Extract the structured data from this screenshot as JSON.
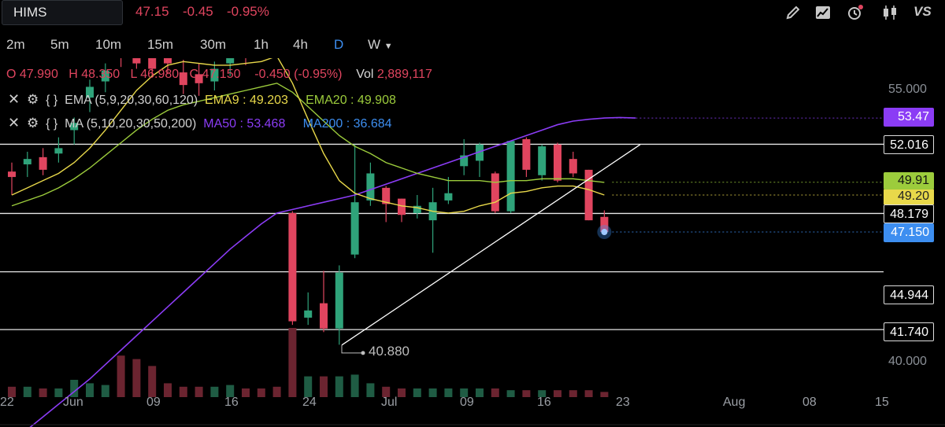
{
  "header": {
    "symbol": "HIMS",
    "last": "47.15",
    "change": "-0.45",
    "change_pct": "-0.95%",
    "tools": [
      "pencil-icon",
      "chart-type-icon",
      "alerts-icon",
      "candlestick-icon",
      "compare-icon"
    ],
    "compare_label": "VS"
  },
  "timeframes": [
    "2m",
    "5m",
    "10m",
    "15m",
    "30m",
    "1h",
    "4h",
    "D",
    "W"
  ],
  "active_timeframe": "D",
  "ohlc": {
    "open_label": "O",
    "open": "47.990",
    "high_label": "H",
    "high": "48.350",
    "low_label": "L",
    "low": "46.980",
    "close_label": "C",
    "close": "47.150",
    "change": "-0.450 (-0.95%)",
    "vol_label": "Vol",
    "vol": "2,889,117"
  },
  "indicators": {
    "ema_label": "EMA (5,9,20,30,60,120)",
    "ema9": "EMA9 : 49.203",
    "ema20": "EMA20 : 49.908",
    "ma_label": "MA (5,10,20,30,50,200)",
    "ma50": "MA50 : 53.468",
    "ma200": "MA200 : 36.684",
    "code_glyph": "{ }"
  },
  "colors": {
    "up": "#2fa37a",
    "down": "#e0455f",
    "ema9": "#e8d84a",
    "ema20": "#9ccc3c",
    "ma50": "#8b3cf5",
    "ma200": "#3d8ef0",
    "accent": "#3d8ef0"
  },
  "price_tags": {
    "ma50": "53.47",
    "ema20": "49.91",
    "ema9": "49.20",
    "last": "47.150",
    "levels": [
      "52.016",
      "48.179",
      "44.944",
      "41.740"
    ]
  },
  "low_annotation": "40.880",
  "y_axis_labels": [
    "55.000",
    "40.000"
  ],
  "x_axis_labels": [
    "22",
    "Jun",
    "09",
    "16",
    "24",
    "Jul",
    "09",
    "16",
    "23",
    "Aug",
    "08",
    "15"
  ],
  "chart_data": {
    "type": "candlestick",
    "y_axis": {
      "ticks": [
        55.0,
        40.0
      ]
    },
    "horizontal_levels": [
      52.016,
      48.179,
      44.944,
      41.74
    ],
    "trendline": {
      "from": 40.88,
      "to": 52.0
    },
    "candles": [
      {
        "o": 50.5,
        "h": 51.0,
        "l": 49.2,
        "c": 50.2
      },
      {
        "o": 50.9,
        "h": 51.6,
        "l": 50.2,
        "c": 51.2
      },
      {
        "o": 51.3,
        "h": 51.8,
        "l": 50.3,
        "c": 50.6
      },
      {
        "o": 51.5,
        "h": 52.4,
        "l": 51.0,
        "c": 51.8
      },
      {
        "o": 52.8,
        "h": 53.5,
        "l": 52.0,
        "c": 53.2
      },
      {
        "o": 54.6,
        "h": 55.6,
        "l": 53.8,
        "c": 55.2
      },
      {
        "o": 55.5,
        "h": 56.5,
        "l": 54.9,
        "c": 56.1
      },
      {
        "o": 57.0,
        "h": 57.8,
        "l": 56.3,
        "c": 56.8
      },
      {
        "o": 57.6,
        "h": 58.0,
        "l": 56.2,
        "c": 56.5
      },
      {
        "o": 56.8,
        "h": 57.4,
        "l": 55.8,
        "c": 56.2
      },
      {
        "o": 57.8,
        "h": 58.2,
        "l": 55.9,
        "c": 56.5
      },
      {
        "o": 56.0,
        "h": 56.7,
        "l": 54.8,
        "c": 55.3
      },
      {
        "o": 55.9,
        "h": 56.5,
        "l": 54.7,
        "c": 55.4
      },
      {
        "o": 55.5,
        "h": 56.6,
        "l": 55.0,
        "c": 56.2
      },
      {
        "o": 56.5,
        "h": 57.2,
        "l": 55.8,
        "c": 56.9
      },
      {
        "o": 57.5,
        "h": 58.0,
        "l": 56.4,
        "c": 56.8
      },
      {
        "o": 58.0,
        "h": 58.3,
        "l": 57.1,
        "c": 57.6
      },
      {
        "o": 59.0,
        "h": 59.5,
        "l": 58.0,
        "c": 58.4
      },
      {
        "o": 48.2,
        "h": 48.3,
        "l": 42.0,
        "c": 42.2
      },
      {
        "o": 42.4,
        "h": 43.8,
        "l": 42.0,
        "c": 42.8
      },
      {
        "o": 43.2,
        "h": 45.0,
        "l": 41.6,
        "c": 41.8
      },
      {
        "o": 41.8,
        "h": 45.3,
        "l": 40.9,
        "c": 44.9
      },
      {
        "o": 45.9,
        "h": 52.0,
        "l": 45.7,
        "c": 48.8
      },
      {
        "o": 48.9,
        "h": 51.0,
        "l": 48.6,
        "c": 50.4
      },
      {
        "o": 49.6,
        "h": 49.7,
        "l": 47.7,
        "c": 48.7
      },
      {
        "o": 49.0,
        "h": 49.0,
        "l": 47.7,
        "c": 48.1
      },
      {
        "o": 48.2,
        "h": 49.2,
        "l": 47.9,
        "c": 48.6
      },
      {
        "o": 47.8,
        "h": 49.6,
        "l": 46.0,
        "c": 48.8
      },
      {
        "o": 48.9,
        "h": 50.2,
        "l": 48.7,
        "c": 49.3
      },
      {
        "o": 50.8,
        "h": 52.3,
        "l": 50.3,
        "c": 51.4
      },
      {
        "o": 51.1,
        "h": 52.1,
        "l": 50.2,
        "c": 52.0
      },
      {
        "o": 50.4,
        "h": 50.5,
        "l": 48.2,
        "c": 48.3
      },
      {
        "o": 48.3,
        "h": 52.2,
        "l": 48.2,
        "c": 52.2
      },
      {
        "o": 52.3,
        "h": 52.4,
        "l": 50.2,
        "c": 50.6
      },
      {
        "o": 50.3,
        "h": 52.0,
        "l": 50.0,
        "c": 51.9
      },
      {
        "o": 52.0,
        "h": 52.1,
        "l": 49.9,
        "c": 50.0
      },
      {
        "o": 51.2,
        "h": 51.6,
        "l": 50.2,
        "c": 50.4
      },
      {
        "o": 50.6,
        "h": 50.6,
        "l": 47.8,
        "c": 47.8
      },
      {
        "o": 47.99,
        "h": 48.35,
        "l": 46.98,
        "c": 47.15
      }
    ],
    "ema9": [
      49.2,
      49.6,
      50.0,
      50.4,
      51.0,
      51.8,
      52.8,
      53.9,
      55.0,
      55.8,
      56.4,
      56.6,
      56.5,
      56.4,
      56.4,
      56.5,
      56.6,
      56.9,
      55.4,
      53.4,
      51.5,
      50.0,
      49.3,
      49.0,
      48.8,
      48.6,
      48.5,
      48.3,
      48.2,
      48.3,
      48.6,
      48.8,
      49.3,
      49.4,
      49.6,
      49.7,
      49.7,
      49.5,
      49.2
    ],
    "ema20": [
      48.6,
      48.9,
      49.2,
      49.6,
      50.1,
      50.7,
      51.4,
      52.1,
      52.8,
      53.4,
      53.9,
      54.2,
      54.4,
      54.6,
      54.8,
      55.0,
      55.2,
      55.4,
      54.9,
      54.1,
      53.3,
      52.5,
      51.9,
      51.5,
      51.0,
      50.7,
      50.4,
      50.2,
      50.0,
      50.0,
      50.0,
      49.9,
      50.0,
      50.0,
      50.1,
      50.1,
      50.1,
      50.0,
      49.9
    ],
    "ma50": [
      35.5,
      36.2,
      36.9,
      37.6,
      38.3,
      39.0,
      39.8,
      40.6,
      41.4,
      42.2,
      43.0,
      43.8,
      44.6,
      45.4,
      46.2,
      46.9,
      47.6,
      48.2,
      48.4,
      48.6,
      48.8,
      49.0,
      49.2,
      49.5,
      49.8,
      50.1,
      50.4,
      50.7,
      51.0,
      51.3,
      51.6,
      51.9,
      52.2,
      52.5,
      52.8,
      53.1,
      53.3,
      53.4,
      53.47
    ],
    "volume": [
      6,
      6,
      5,
      5,
      10,
      8,
      7,
      24,
      22,
      18,
      8,
      6,
      6,
      6,
      7,
      5,
      5,
      6,
      40,
      12,
      12,
      12,
      13,
      8,
      6,
      5,
      5,
      5,
      5,
      5,
      5,
      5,
      4,
      4,
      4,
      4,
      4,
      4,
      3
    ]
  }
}
